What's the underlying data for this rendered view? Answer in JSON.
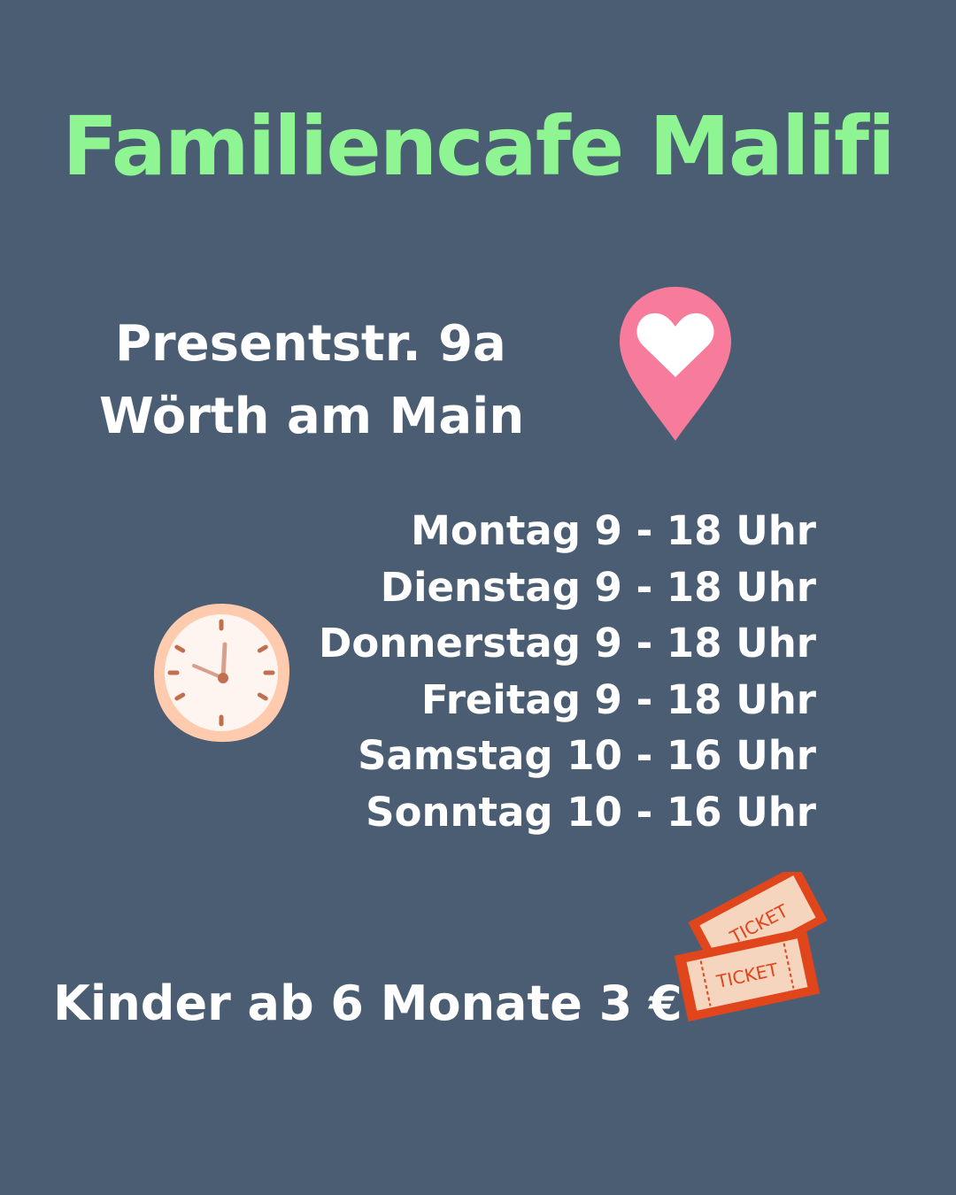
{
  "title": "Familiencafe Malifi",
  "address": {
    "line1": "Presentstr. 9a",
    "line2": "Wörth am Main"
  },
  "hours": [
    "Montag 9 - 18 Uhr",
    "Dienstag 9 - 18 Uhr",
    "Donnerstag 9 - 18 Uhr",
    "Freitag 9 - 18 Uhr",
    "Samstag 10 - 16 Uhr",
    "Sonntag 10 - 16 Uhr"
  ],
  "price": "Kinder ab 6 Monate 3 €",
  "ticket_label": "TICKET",
  "icons": {
    "location": "heart-location-pin-icon",
    "clock": "clock-icon",
    "tickets": "tickets-icon"
  },
  "colors": {
    "background": "#4b5d73",
    "title": "#8ff593",
    "pin": "#f77b9a",
    "ticket": "#e0451c"
  }
}
